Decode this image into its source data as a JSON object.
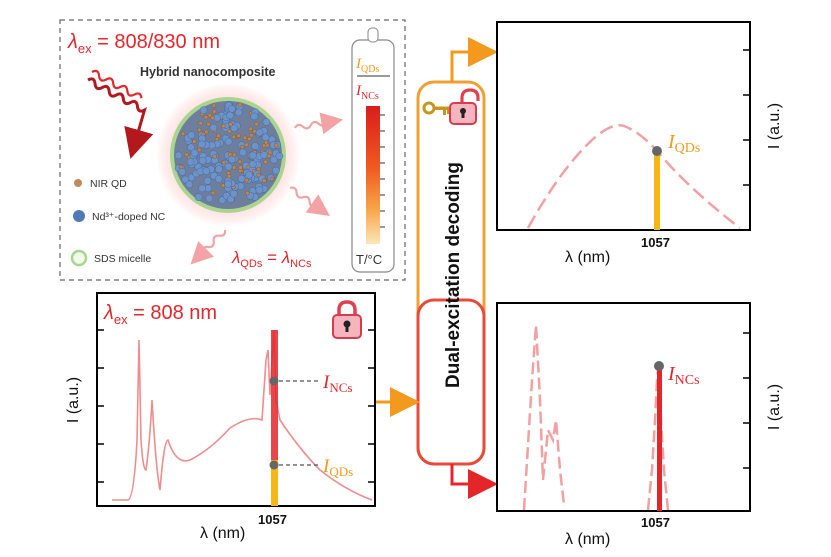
{
  "top_left_panel": {
    "excitation_prefix": "λ",
    "excitation_subscript": "ex",
    "excitation_value": " = 808/830 nm",
    "title": "Hybrid nanocomposite",
    "legend": [
      {
        "label": "NIR QD",
        "color": "#c08a5a"
      },
      {
        "label": "Nd³⁺-doped NC",
        "color": "#4f79b8"
      },
      {
        "label": "SDS micelle",
        "color": "#a7d68f"
      }
    ],
    "equation": {
      "lhs": "λ",
      "lhs_sub": "QDs",
      "eq": " = ",
      "rhs": "λ",
      "rhs_sub": "NCs"
    },
    "thermometer": {
      "ratio_top": "I",
      "ratio_top_sub": "QDs",
      "ratio_bottom": "I",
      "ratio_bottom_sub": "NCs",
      "unit": "T/°C"
    }
  },
  "bottom_left_chart": {
    "excitation_prefix": "λ",
    "excitation_subscript": "ex",
    "excitation_value": " = 808 nm",
    "ylabel": "I (a.u.)",
    "xlabel": "λ (nm)",
    "tick_label": "1057",
    "annotations": [
      {
        "text": "I",
        "sub": "NCs",
        "color": "#e4262b"
      },
      {
        "text": "I",
        "sub": "QDs",
        "color": "#f39a1e"
      }
    ]
  },
  "decoding": {
    "label": "Dual-excitation decoding"
  },
  "top_right_chart": {
    "ylabel": "I (a.u.)",
    "xlabel": "λ (nm)",
    "tick_label": "1057",
    "annotation": {
      "text": "I",
      "sub": "QDs",
      "color": "#f39a1e"
    }
  },
  "bottom_right_chart": {
    "ylabel": "I (a.u.)",
    "xlabel": "λ (nm)",
    "tick_label": "1057",
    "annotation": {
      "text": "I",
      "sub": "NCs",
      "color": "#e4262b"
    }
  },
  "colors": {
    "red": "#e4262b",
    "orange": "#f39a1e",
    "spectrum_pink": "#f08c8c"
  }
}
